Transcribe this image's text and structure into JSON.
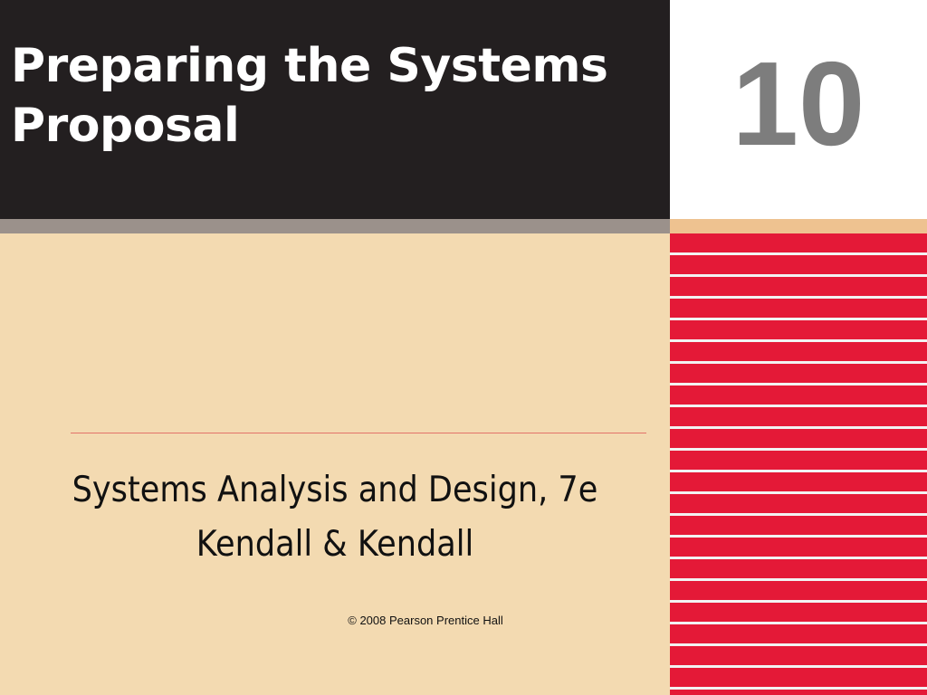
{
  "slide": {
    "title": "Preparing the Systems Proposal",
    "chapter_number": "10",
    "subtitle_line1": "Systems Analysis and Design, 7e",
    "subtitle_line2": "Kendall & Kendall",
    "copyright": "© 2008 Pearson Prentice Hall"
  },
  "colors": {
    "title_band": "#231f20",
    "title_gray_bar": "#9b918b",
    "background_tan": "#f3dab1",
    "number_box": "#ffffff",
    "number_text": "#7d7d7d",
    "stripe_red": "#e41937",
    "stripe_white": "#f2f2f2",
    "divider": "#e2736a"
  }
}
